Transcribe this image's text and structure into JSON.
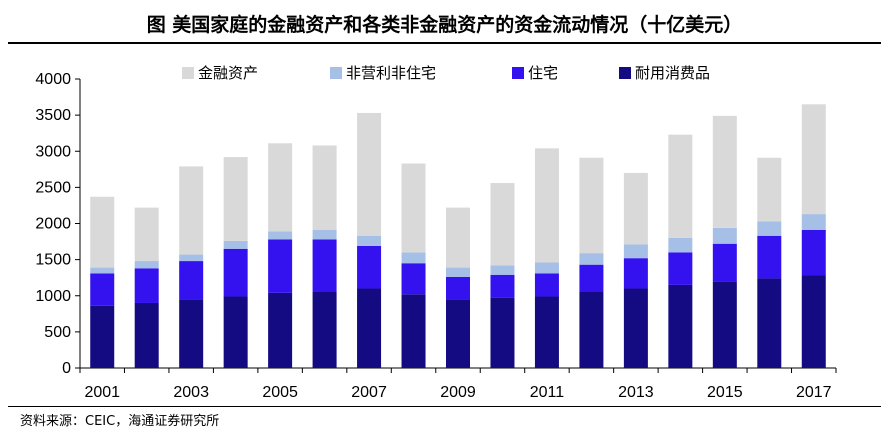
{
  "header": {
    "title": "图  美国家庭的金融资产和各类非金融资产的资金流动情况（十亿美元）"
  },
  "footer": {
    "source": "资料来源：CEIC，海通证券研究所"
  },
  "colors": {
    "financial": "#d9d9d9",
    "nonres": "#a6bfe6",
    "housing": "#3412f0",
    "durable": "#140a82"
  },
  "chart_data": {
    "type": "bar",
    "stacked": true,
    "title": "美国家庭的金融资产和各类非金融资产的资金流动情况（十亿美元）",
    "xlabel": "",
    "ylabel": "",
    "ylim": [
      0,
      4000
    ],
    "yticks": [
      "0",
      "500",
      "1000",
      "1500",
      "2000",
      "2500",
      "3000",
      "3500",
      "4000"
    ],
    "categories": [
      "2001",
      "2002",
      "2003",
      "2004",
      "2005",
      "2006",
      "2007",
      "2008",
      "2009",
      "2010",
      "2011",
      "2012",
      "2013",
      "2014",
      "2015",
      "2016",
      "2017"
    ],
    "xtick_labels": [
      "2001",
      "2003",
      "2005",
      "2007",
      "2009",
      "2011",
      "2013",
      "2015",
      "2017"
    ],
    "legend_position": "top",
    "series": [
      {
        "name": "耐用消费品",
        "color_key": "durable",
        "values": [
          860,
          900,
          950,
          990,
          1040,
          1060,
          1100,
          1020,
          950,
          970,
          990,
          1060,
          1100,
          1150,
          1200,
          1240,
          1280
        ]
      },
      {
        "name": "住宅",
        "color_key": "housing",
        "values": [
          450,
          480,
          530,
          660,
          740,
          720,
          590,
          430,
          310,
          320,
          320,
          370,
          420,
          450,
          520,
          590,
          630
        ]
      },
      {
        "name": "非营利非住宅",
        "color_key": "nonres",
        "values": [
          80,
          100,
          90,
          110,
          110,
          130,
          140,
          150,
          130,
          130,
          150,
          160,
          190,
          200,
          220,
          200,
          220
        ]
      },
      {
        "name": "金融资产",
        "color_key": "financial",
        "values": [
          980,
          740,
          1220,
          1160,
          1220,
          1170,
          1700,
          1230,
          830,
          1140,
          1580,
          1320,
          990,
          1430,
          1550,
          880,
          1520
        ]
      }
    ]
  }
}
